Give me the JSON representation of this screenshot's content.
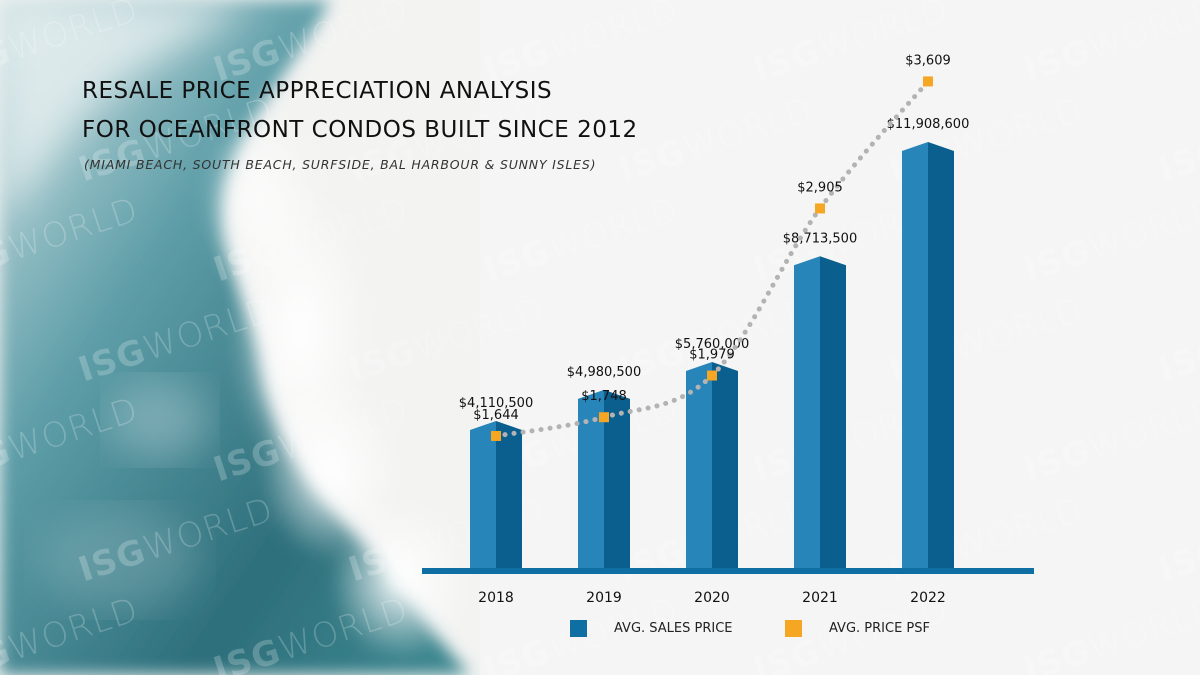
{
  "header": {
    "title_line1": "RESALE PRICE APPRECIATION ANALYSIS",
    "title_line2": "FOR OCEANFRONT CONDOS BUILT SINCE 2012",
    "subtitle": "(MIAMI BEACH, SOUTH BEACH, SURFSIDE, BAL HARBOUR & SUNNY ISLES)"
  },
  "watermark": {
    "bold": "ISG",
    "light": "WORLD"
  },
  "legend": {
    "sales_label": "AVG. SALES PRICE",
    "psf_label": "AVG. PRICE PSF"
  },
  "colors": {
    "bar": "#0F6FA3",
    "bar_dark": "#0B5F8E",
    "bar_light": "#2785BA",
    "baseline": "#0F6FA3",
    "psf_marker": "#F5A623",
    "psf_line": "#B3B3B3"
  },
  "chart_data": {
    "type": "bar",
    "categories": [
      "2018",
      "2019",
      "2020",
      "2021",
      "2022"
    ],
    "series": [
      {
        "name": "AVG. SALES PRICE",
        "type": "bar",
        "values": [
          4110500,
          4980500,
          5760000,
          8713500,
          11908600
        ],
        "labels": [
          "$4,110,500",
          "$4,980,500",
          "$5,760,000",
          "$8,713,500",
          "$11,908,600"
        ]
      },
      {
        "name": "AVG. PRICE PSF",
        "type": "line",
        "values": [
          1644,
          1748,
          1979,
          2905,
          3609
        ],
        "labels": [
          "$1,644",
          "$1,748",
          "$1,979",
          "$2,905",
          "$3,609"
        ]
      }
    ],
    "xlabel": "",
    "ylabel": "",
    "grid": false,
    "legend_position": "bottom"
  }
}
